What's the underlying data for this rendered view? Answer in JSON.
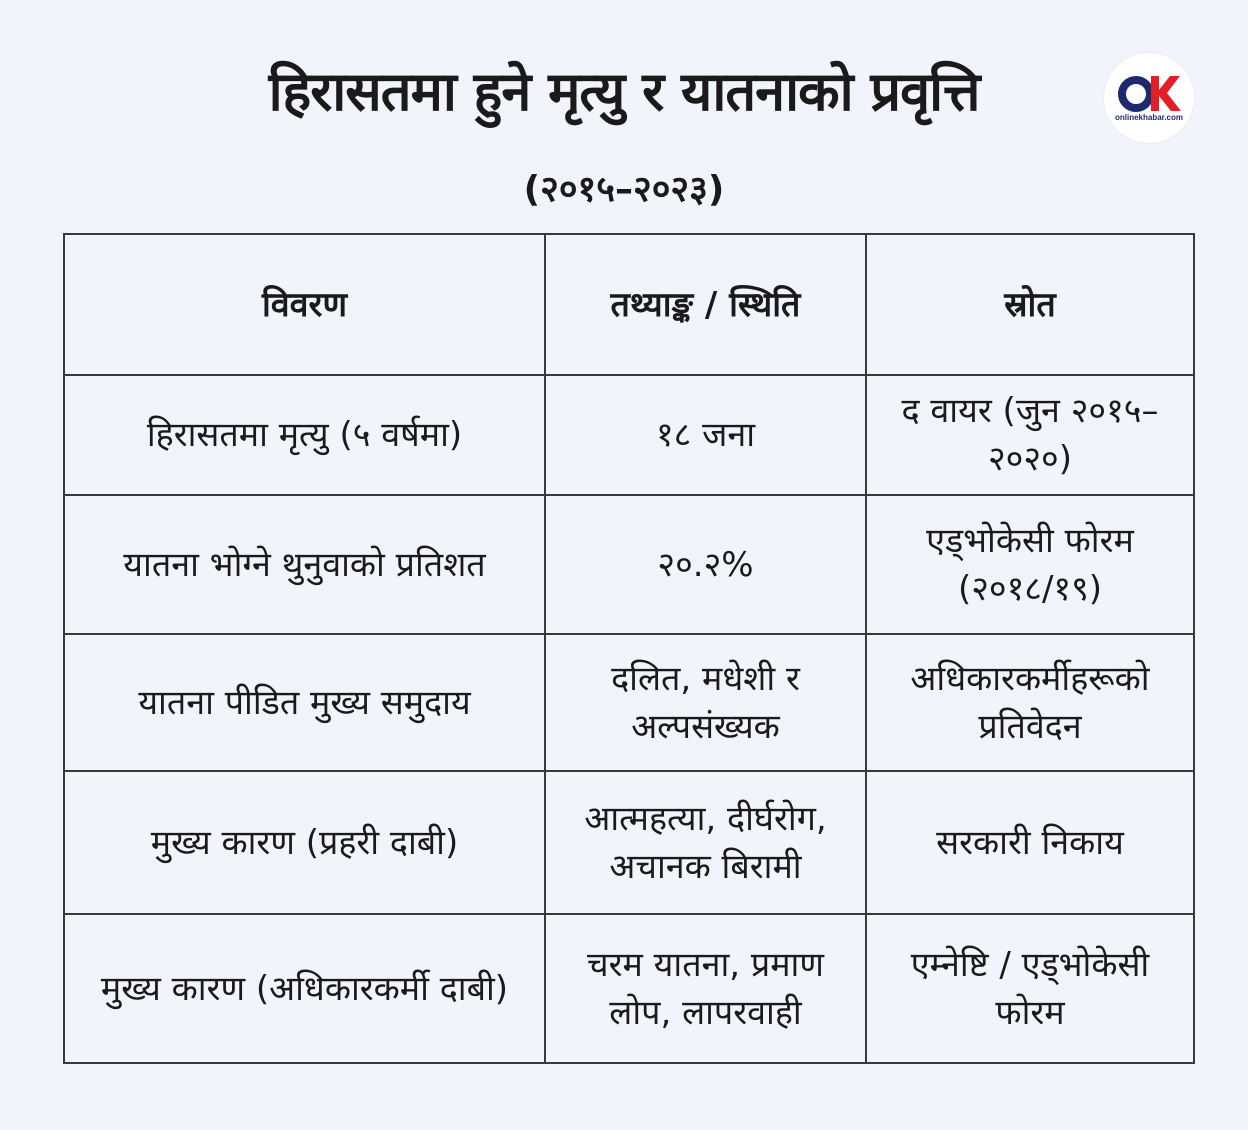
{
  "header": {
    "title": "हिरासतमा हुने मृत्यु र यातनाको प्रवृत्ति",
    "subtitle": "(२०१५–२०२३)"
  },
  "logo": {
    "mark": "OK",
    "text": "onlinekhabar.com",
    "colors": {
      "o": "#1e2a6e",
      "k": "#e41e26"
    }
  },
  "table": {
    "columns": [
      "विवरण",
      "तथ्याङ्क / स्थिति",
      "स्रोत"
    ],
    "rows": [
      [
        "हिरासतमा मृत्यु (५ वर्षमा)",
        "१८ जना",
        "द वायर (जुन २०१५–२०२०)"
      ],
      [
        "यातना भोग्ने थुनुवाको प्रतिशत",
        "२०.२%",
        "एड्भोकेसी फोरम (२०१८/१९)"
      ],
      [
        "यातना पीडित मुख्य समुदाय",
        "दलित, मधेशी र अल्पसंख्यक",
        "अधिकारकर्मीहरूको प्रतिवेदन"
      ],
      [
        "मुख्य कारण (प्रहरी दाबी)",
        "आत्महत्या, दीर्घरोग, अचानक बिरामी",
        "सरकारी निकाय"
      ],
      [
        "मुख्य कारण (अधिकारकर्मी दाबी)",
        "चरम यातना, प्रमाण लोप, लापरवाही",
        "एम्नेष्टि / एड्भोकेसी फोरम"
      ]
    ]
  },
  "colors": {
    "background": "#f1f4fb",
    "text": "#1a1a1a",
    "border": "#3a3a3a"
  }
}
